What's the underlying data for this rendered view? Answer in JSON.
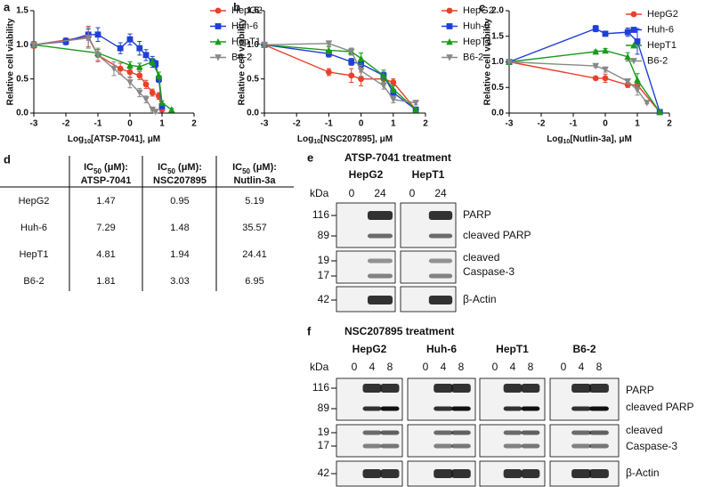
{
  "chart_data": [
    {
      "type": "line",
      "label": "a",
      "y_label": "Relative cell viability",
      "x_label": [
        "Log",
        "10",
        "[ATSP-7041], μM"
      ],
      "xlim": [
        -3,
        2
      ],
      "xticks": [
        -3,
        -2,
        -1,
        0,
        1,
        2
      ],
      "ylim": [
        0,
        1.5
      ],
      "yticks": [
        {
          "value": 0,
          "label": "0.0"
        },
        0.5,
        {
          "value": 1,
          "label": "1.0"
        },
        1.5
      ],
      "series": [
        {
          "name": "HepG2",
          "color": "#e8402a",
          "marker": "circle",
          "x": [
            -3,
            -1.3,
            -1,
            -0.3,
            0,
            0.3,
            0.5,
            0.7,
            0.9,
            1.0
          ],
          "values": [
            1.0,
            1.12,
            0.85,
            0.65,
            0.6,
            0.55,
            0.42,
            0.3,
            0.25,
            0.05
          ],
          "errors": [
            0.05,
            0.15,
            0.08,
            0.08,
            0.08,
            0.06,
            0.06,
            0.05,
            0.05,
            0.02
          ]
        },
        {
          "name": "Huh-6",
          "color": "#1f3fd6",
          "marker": "square",
          "x": [
            -3,
            -2,
            -1.3,
            -1,
            -0.3,
            0,
            0.3,
            0.5,
            0.7,
            0.8,
            0.9,
            1.0
          ],
          "values": [
            1.0,
            1.05,
            1.15,
            1.15,
            0.95,
            1.08,
            0.95,
            0.85,
            0.75,
            0.72,
            0.5,
            0.1
          ],
          "errors": [
            0.03,
            0.05,
            0.08,
            0.1,
            0.08,
            0.08,
            0.1,
            0.08,
            0.08,
            0.05,
            0.05,
            0.03
          ]
        },
        {
          "name": "HepT1",
          "color": "#1a9a1a",
          "marker": "triangle",
          "x": [
            -3,
            -1,
            0,
            0.3,
            0.7,
            0.9,
            1.0,
            1.3
          ],
          "values": [
            1.0,
            0.88,
            0.7,
            0.68,
            0.75,
            0.55,
            0.15,
            0.05
          ],
          "errors": [
            0.03,
            0.05,
            0.05,
            0.05,
            0.05,
            0.05,
            0.03,
            0.02
          ]
        },
        {
          "name": "B6-2",
          "color": "#888888",
          "marker": "triangle-down",
          "x": [
            -3,
            -1.3,
            -1,
            -0.5,
            0,
            0.3,
            0.5,
            0.7,
            0.8
          ],
          "values": [
            1.0,
            1.1,
            0.85,
            0.65,
            0.45,
            0.3,
            0.2,
            0.05,
            0.02
          ],
          "errors": [
            0.03,
            0.15,
            0.1,
            0.1,
            0.08,
            0.06,
            0.05,
            0.02,
            0.02
          ]
        }
      ]
    },
    {
      "type": "line",
      "label": "b",
      "y_label": "Relative cell viability",
      "x_label": [
        "Log",
        "10",
        "[NSC207895], μM"
      ],
      "xlim": [
        -3,
        2
      ],
      "xticks": [
        -3,
        -2,
        -1,
        0,
        1,
        2
      ],
      "ylim": [
        0,
        1.5
      ],
      "yticks": [
        {
          "value": 0,
          "label": "0.0"
        },
        0.5,
        {
          "value": 1,
          "label": "1.0"
        },
        1.5
      ],
      "series": [
        {
          "name": "HepG2",
          "color": "#e8402a",
          "marker": "circle",
          "x": [
            -3,
            -1,
            -0.3,
            0,
            0.7,
            1.0,
            1.7
          ],
          "values": [
            1.0,
            0.6,
            0.55,
            0.5,
            0.5,
            0.45,
            0.05
          ],
          "errors": [
            0.03,
            0.05,
            0.1,
            0.1,
            0.08,
            0.05,
            0.02
          ]
        },
        {
          "name": "Huh-6",
          "color": "#1f3fd6",
          "marker": "square",
          "x": [
            -3,
            -1,
            -0.3,
            0,
            0.7,
            1.0,
            1.7
          ],
          "values": [
            1.0,
            0.87,
            0.75,
            0.72,
            0.55,
            0.3,
            0.05
          ],
          "errors": [
            0.03,
            0.05,
            0.05,
            0.05,
            0.05,
            0.05,
            0.02
          ]
        },
        {
          "name": "HepT1",
          "color": "#1a9a1a",
          "marker": "triangle",
          "x": [
            -3,
            -1,
            -0.3,
            0,
            0.7,
            1.0,
            1.7
          ],
          "values": [
            1.0,
            0.92,
            0.9,
            0.8,
            0.55,
            0.35,
            0.05
          ],
          "errors": [
            0.03,
            0.05,
            0.05,
            0.08,
            0.08,
            0.05,
            0.02
          ]
        },
        {
          "name": "B6-2",
          "color": "#888888",
          "marker": "triangle-down",
          "x": [
            -3,
            -1,
            -0.3,
            0,
            0.7,
            1.0,
            1.7
          ],
          "values": [
            1.0,
            1.02,
            0.9,
            0.62,
            0.4,
            0.2,
            0.15
          ],
          "errors": [
            0.03,
            0.03,
            0.05,
            0.08,
            0.05,
            0.05,
            0.03
          ]
        }
      ]
    },
    {
      "type": "line",
      "label": "c",
      "y_label": "Relative cell viability",
      "x_label": [
        "Log",
        "10",
        "[Nutlin-3a], μM"
      ],
      "xlim": [
        -3,
        2
      ],
      "xticks": [
        -3,
        -2,
        -1,
        0,
        1,
        2
      ],
      "ylim": [
        0,
        2
      ],
      "yticks": [
        {
          "value": 0,
          "label": "0.0"
        },
        0.5,
        {
          "value": 1,
          "label": "1.0"
        },
        1.5,
        {
          "value": 2,
          "label": "2.0"
        }
      ],
      "series": [
        {
          "name": "HepG2",
          "color": "#e8402a",
          "marker": "circle",
          "x": [
            -3,
            -0.3,
            0,
            0.7,
            1.0,
            1.7
          ],
          "values": [
            1.0,
            0.68,
            0.68,
            0.55,
            0.55,
            0.02
          ],
          "errors": [
            0.02,
            0.03,
            0.08,
            0.05,
            0.08,
            0.02
          ]
        },
        {
          "name": "Huh-6",
          "color": "#1f3fd6",
          "marker": "square",
          "x": [
            -3,
            -0.3,
            0,
            0.7,
            1.0,
            1.7
          ],
          "values": [
            1.0,
            1.65,
            1.55,
            1.58,
            1.4,
            0.02
          ],
          "errors": [
            0.02,
            0.06,
            0.05,
            0.08,
            0.25,
            0.02
          ]
        },
        {
          "name": "HepT1",
          "color": "#1a9a1a",
          "marker": "triangle",
          "x": [
            -3,
            -0.3,
            0,
            0.7,
            1.0,
            1.7
          ],
          "values": [
            1.0,
            1.2,
            1.22,
            1.1,
            0.65,
            0.02
          ],
          "errors": [
            0.02,
            0.03,
            0.04,
            0.08,
            0.12,
            0.02
          ]
        },
        {
          "name": "B6-2",
          "color": "#888888",
          "marker": "triangle-down",
          "x": [
            -3,
            -0.3,
            0,
            0.7,
            1.0,
            1.3
          ],
          "values": [
            1.0,
            0.92,
            0.85,
            0.62,
            0.45,
            0.2
          ],
          "errors": [
            0.02,
            0.03,
            0.05,
            0.05,
            0.1,
            0.02
          ]
        }
      ]
    }
  ],
  "table": {
    "label": "d",
    "header": [
      {
        "top": [
          "IC",
          "50",
          " (μM):"
        ],
        "bottom": "ATSP-7041"
      },
      {
        "top": [
          "IC",
          "50",
          " (μM):"
        ],
        "bottom": "NSC207895"
      },
      {
        "top": [
          "IC",
          "50",
          " (μM):"
        ],
        "bottom": "Nutlin-3a"
      }
    ],
    "rows": [
      [
        "HepG2",
        1.47,
        0.95,
        5.19
      ],
      [
        "Huh-6",
        7.29,
        1.48,
        35.57
      ],
      [
        "HepT1",
        4.81,
        1.94,
        24.41
      ],
      [
        "B6-2",
        1.81,
        3.03,
        6.95
      ]
    ]
  },
  "blots": [
    {
      "label": "e",
      "title": "ATSP-7041 treatment",
      "unit": "kDa",
      "groups": [
        {
          "name": "HepG2",
          "lanes": [
            0,
            24
          ]
        },
        {
          "name": "HepT1",
          "lanes": [
            0,
            24
          ]
        }
      ],
      "markers": [
        116,
        89,
        19,
        17,
        42
      ],
      "targets": [
        "PARP",
        "cleaved PARP",
        "cleaved",
        "Caspase-3",
        "β-Actin"
      ]
    },
    {
      "label": "f",
      "title": "NSC207895 treatment",
      "unit": "kDa",
      "groups": [
        {
          "name": "HepG2",
          "lanes": [
            0,
            4,
            8
          ]
        },
        {
          "name": "Huh-6",
          "lanes": [
            0,
            4,
            8
          ]
        },
        {
          "name": "HepT1",
          "lanes": [
            0,
            4,
            8
          ]
        },
        {
          "name": "B6-2",
          "lanes": [
            0,
            4,
            8
          ]
        }
      ],
      "markers": [
        116,
        89,
        19,
        17,
        42
      ],
      "targets": [
        "PARP",
        "cleaved PARP",
        "cleaved",
        "Caspase-3",
        "β-Actin"
      ]
    }
  ]
}
